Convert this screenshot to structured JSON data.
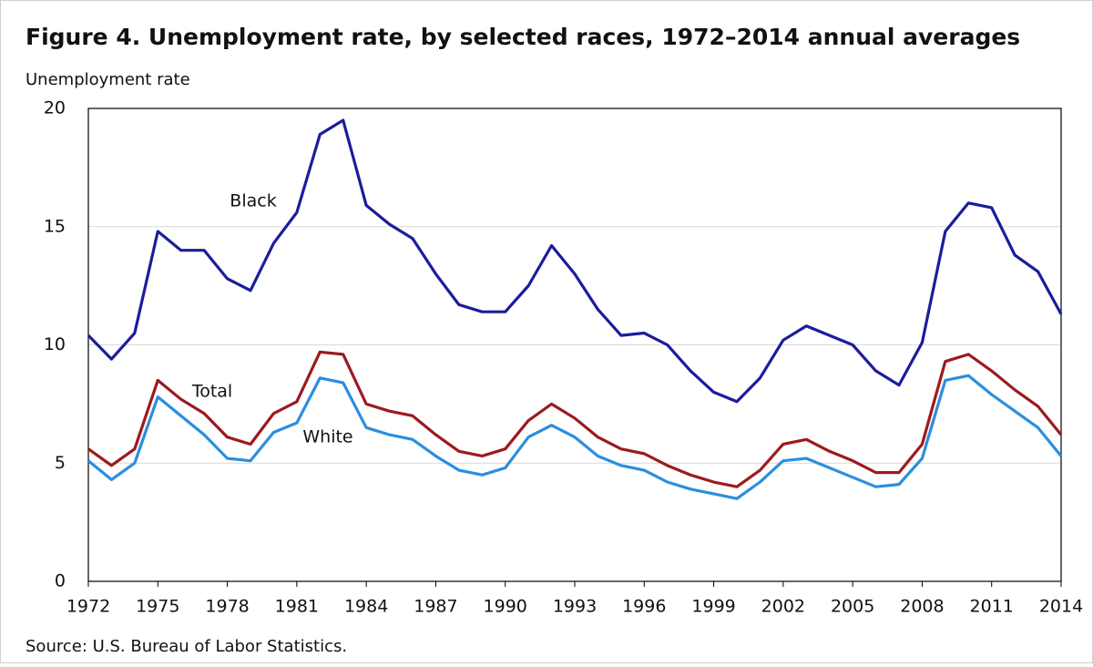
{
  "chart_data": {
    "type": "line",
    "title": "Figure 4. Unemployment rate, by selected races, 1972–2014 annual averages",
    "y_label": "Unemployment rate",
    "source": "Source: U.S. Bureau of Labor Statistics.",
    "x": [
      1972,
      1973,
      1974,
      1975,
      1976,
      1977,
      1978,
      1979,
      1980,
      1981,
      1982,
      1983,
      1984,
      1985,
      1986,
      1987,
      1988,
      1989,
      1990,
      1991,
      1992,
      1993,
      1994,
      1995,
      1996,
      1997,
      1998,
      1999,
      2000,
      2001,
      2002,
      2003,
      2004,
      2005,
      2006,
      2007,
      2008,
      2009,
      2010,
      2011,
      2012,
      2013,
      2014
    ],
    "series": [
      {
        "name": "Black",
        "color": "#1c1c9c",
        "values": [
          10.4,
          9.4,
          10.5,
          14.8,
          14.0,
          14.0,
          12.8,
          12.3,
          14.3,
          15.6,
          18.9,
          19.5,
          15.9,
          15.1,
          14.5,
          13.0,
          11.7,
          11.4,
          11.4,
          12.5,
          14.2,
          13.0,
          11.5,
          10.4,
          10.5,
          10.0,
          8.9,
          8.0,
          7.6,
          8.6,
          10.2,
          10.8,
          10.4,
          10.0,
          8.9,
          8.3,
          10.1,
          14.8,
          16.0,
          15.8,
          13.8,
          13.1,
          11.3
        ]
      },
      {
        "name": "Total",
        "color": "#9c1a1e",
        "values": [
          5.6,
          4.9,
          5.6,
          8.5,
          7.7,
          7.1,
          6.1,
          5.8,
          7.1,
          7.6,
          9.7,
          9.6,
          7.5,
          7.2,
          7.0,
          6.2,
          5.5,
          5.3,
          5.6,
          6.8,
          7.5,
          6.9,
          6.1,
          5.6,
          5.4,
          4.9,
          4.5,
          4.2,
          4.0,
          4.7,
          5.8,
          6.0,
          5.5,
          5.1,
          4.6,
          4.6,
          5.8,
          9.3,
          9.6,
          8.9,
          8.1,
          7.4,
          6.2
        ]
      },
      {
        "name": "White",
        "color": "#2b8ee0",
        "values": [
          5.1,
          4.3,
          5.0,
          7.8,
          7.0,
          6.2,
          5.2,
          5.1,
          6.3,
          6.7,
          8.6,
          8.4,
          6.5,
          6.2,
          6.0,
          5.3,
          4.7,
          4.5,
          4.8,
          6.1,
          6.6,
          6.1,
          5.3,
          4.9,
          4.7,
          4.2,
          3.9,
          3.7,
          3.5,
          4.2,
          5.1,
          5.2,
          4.8,
          4.4,
          4.0,
          4.1,
          5.2,
          8.5,
          8.7,
          7.9,
          7.2,
          6.5,
          5.3
        ]
      }
    ],
    "xlim": [
      1972,
      2014
    ],
    "xticks": [
      1972,
      1975,
      1978,
      1981,
      1984,
      1987,
      1990,
      1993,
      1996,
      1999,
      2002,
      2005,
      2008,
      2011,
      2014
    ],
    "ylim": [
      0,
      20
    ],
    "yticks": [
      0,
      5,
      10,
      15,
      20
    ],
    "grid": true
  }
}
